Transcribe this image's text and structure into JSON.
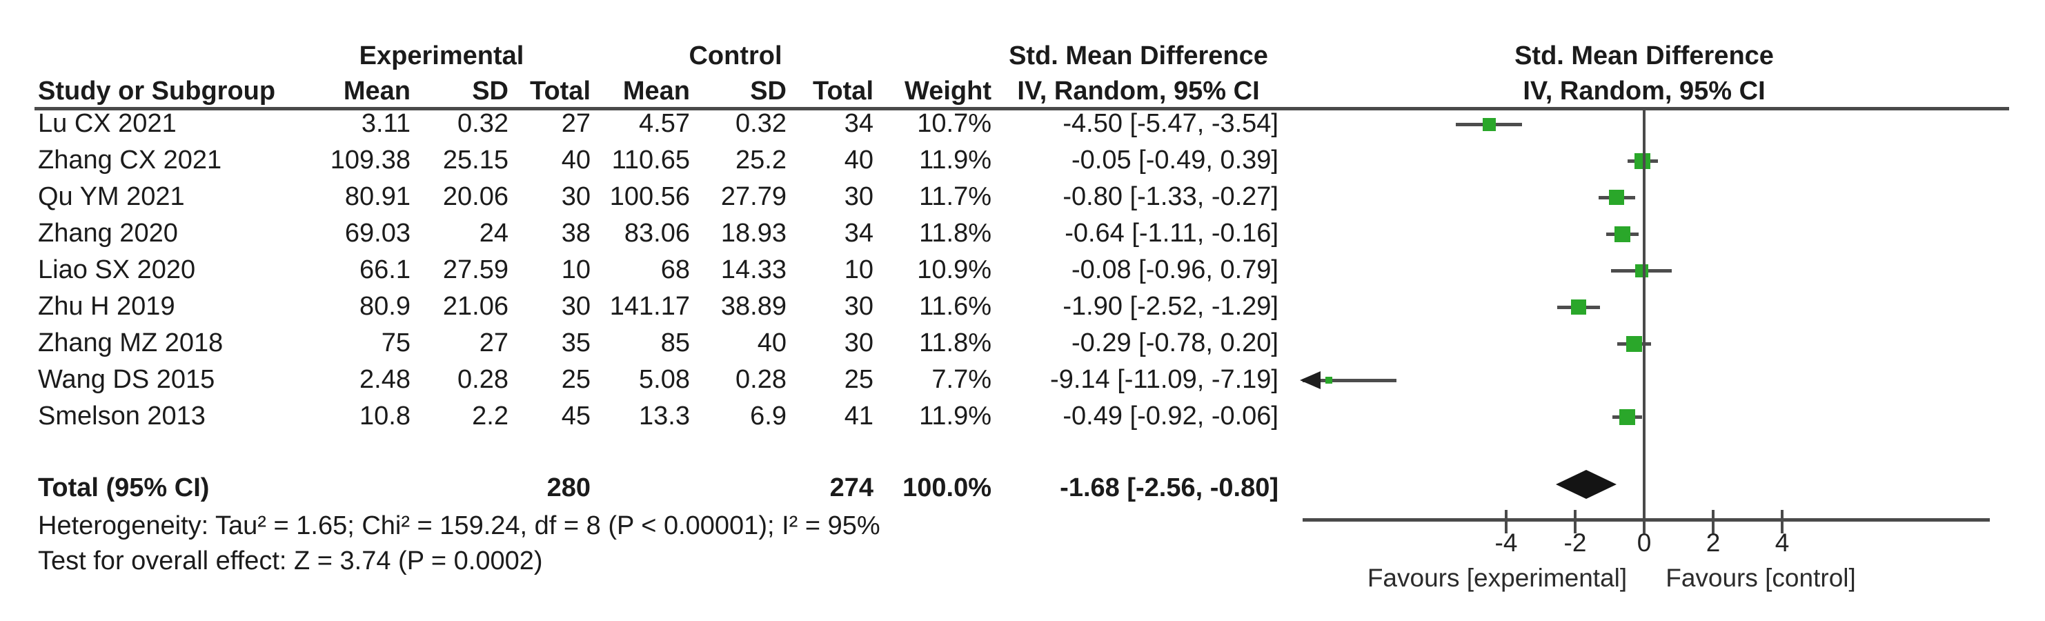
{
  "colors": {
    "marker_green": "#2aa72a",
    "line_gray": "#4d4d4d",
    "axis_gray": "#4a4a4a",
    "diamond_black": "#141414",
    "text": "#1b1b1b"
  },
  "header": {
    "study": "Study or Subgroup",
    "group_experimental": "Experimental",
    "group_control": "Control",
    "subcols": [
      "Mean",
      "SD",
      "Total",
      "Mean",
      "SD",
      "Total",
      "Weight"
    ],
    "smd_line1": "Std. Mean Difference",
    "smd_line2": "IV, Random, 95% CI",
    "plot_line1": "Std. Mean Difference",
    "plot_line2": "IV, Random, 95% CI"
  },
  "chart_data": {
    "type": "forest",
    "effect_measure": "Std. Mean Difference",
    "model": "IV, Random, 95% CI",
    "studies": [
      {
        "name": "Lu CX 2021",
        "exp_mean": "3.11",
        "exp_sd": "0.32",
        "exp_total": "27",
        "ctl_mean": "4.57",
        "ctl_sd": "0.32",
        "ctl_total": "34",
        "weight": "10.7%",
        "ci_text": "-4.50 [-5.47, -3.54]",
        "estimate": -4.5,
        "ci_low": -5.47,
        "ci_high": -3.54,
        "weight_val": 10.7
      },
      {
        "name": "Zhang CX 2021",
        "exp_mean": "109.38",
        "exp_sd": "25.15",
        "exp_total": "40",
        "ctl_mean": "110.65",
        "ctl_sd": "25.2",
        "ctl_total": "40",
        "weight": "11.9%",
        "ci_text": "-0.05 [-0.49, 0.39]",
        "estimate": -0.05,
        "ci_low": -0.49,
        "ci_high": 0.39,
        "weight_val": 11.9
      },
      {
        "name": "Qu YM 2021",
        "exp_mean": "80.91",
        "exp_sd": "20.06",
        "exp_total": "30",
        "ctl_mean": "100.56",
        "ctl_sd": "27.79",
        "ctl_total": "30",
        "weight": "11.7%",
        "ci_text": "-0.80 [-1.33, -0.27]",
        "estimate": -0.8,
        "ci_low": -1.33,
        "ci_high": -0.27,
        "weight_val": 11.7
      },
      {
        "name": "Zhang 2020",
        "exp_mean": "69.03",
        "exp_sd": "24",
        "exp_total": "38",
        "ctl_mean": "83.06",
        "ctl_sd": "18.93",
        "ctl_total": "34",
        "weight": "11.8%",
        "ci_text": "-0.64 [-1.11, -0.16]",
        "estimate": -0.64,
        "ci_low": -1.11,
        "ci_high": -0.16,
        "weight_val": 11.8
      },
      {
        "name": "Liao SX 2020",
        "exp_mean": "66.1",
        "exp_sd": "27.59",
        "exp_total": "10",
        "ctl_mean": "68",
        "ctl_sd": "14.33",
        "ctl_total": "10",
        "weight": "10.9%",
        "ci_text": "-0.08 [-0.96, 0.79]",
        "estimate": -0.08,
        "ci_low": -0.96,
        "ci_high": 0.79,
        "weight_val": 10.9
      },
      {
        "name": "Zhu H 2019",
        "exp_mean": "80.9",
        "exp_sd": "21.06",
        "exp_total": "30",
        "ctl_mean": "141.17",
        "ctl_sd": "38.89",
        "ctl_total": "30",
        "weight": "11.6%",
        "ci_text": "-1.90 [-2.52, -1.29]",
        "estimate": -1.9,
        "ci_low": -2.52,
        "ci_high": -1.29,
        "weight_val": 11.6
      },
      {
        "name": "Zhang MZ 2018",
        "exp_mean": "75",
        "exp_sd": "27",
        "exp_total": "35",
        "ctl_mean": "85",
        "ctl_sd": "40",
        "ctl_total": "30",
        "weight": "11.8%",
        "ci_text": "-0.29 [-0.78, 0.20]",
        "estimate": -0.29,
        "ci_low": -0.78,
        "ci_high": 0.2,
        "weight_val": 11.8
      },
      {
        "name": "Wang DS 2015",
        "exp_mean": "2.48",
        "exp_sd": "0.28",
        "exp_total": "25",
        "ctl_mean": "5.08",
        "ctl_sd": "0.28",
        "ctl_total": "25",
        "weight": "7.7%",
        "ci_text": "-9.14 [-11.09, -7.19]",
        "estimate": -9.14,
        "ci_low": -11.09,
        "ci_high": -7.19,
        "weight_val": 7.7
      },
      {
        "name": "Smelson 2013",
        "exp_mean": "10.8",
        "exp_sd": "2.2",
        "exp_total": "45",
        "ctl_mean": "13.3",
        "ctl_sd": "6.9",
        "ctl_total": "41",
        "weight": "11.9%",
        "ci_text": "-0.49 [-0.92, -0.06]",
        "estimate": -0.49,
        "ci_low": -0.92,
        "ci_high": -0.06,
        "weight_val": 11.9
      }
    ],
    "total": {
      "label": "Total (95% CI)",
      "exp_total": "280",
      "ctl_total": "274",
      "weight": "100.0%",
      "ci_text": "-1.68 [-2.56, -0.80]",
      "estimate": -1.68,
      "ci_low": -2.56,
      "ci_high": -0.8
    },
    "footnotes": {
      "heterogeneity": "Heterogeneity: Tau² = 1.65; Chi² = 159.24, df = 8 (P < 0.00001); I² = 95%",
      "overall_test": "Test for overall effect: Z = 3.74 (P = 0.0002)"
    },
    "axis": {
      "ticks": [
        -4,
        -2,
        0,
        2,
        4
      ],
      "tick_labels": [
        "-4",
        "-2",
        "0",
        "2",
        "4"
      ],
      "favours_left": "Favours [experimental]",
      "favours_right": "Favours [control]",
      "xlim_visible": [
        -10,
        10
      ]
    }
  }
}
